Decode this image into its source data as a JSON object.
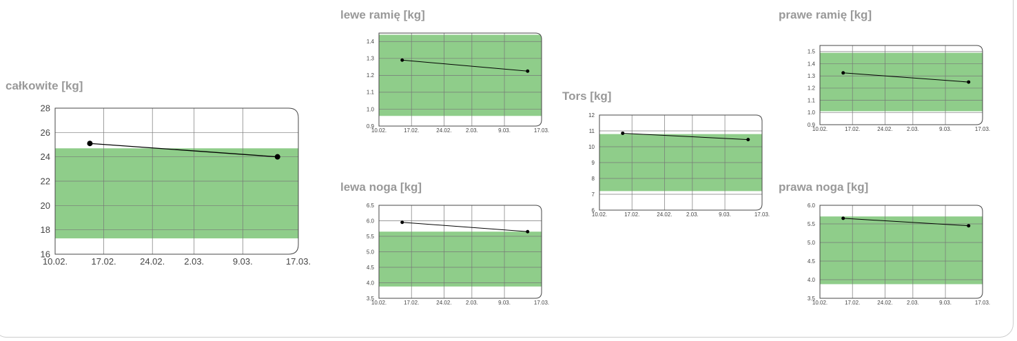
{
  "chart_data": [
    {
      "id": "calkowite",
      "type": "line",
      "title": "całkowite [kg]",
      "x_ticks": [
        "10.02.",
        "17.02.",
        "24.02.",
        "2.03.",
        "9.03.",
        "17.03."
      ],
      "y_ticks": [
        "16",
        "18",
        "20",
        "22",
        "24",
        "26",
        "28"
      ],
      "ylim": [
        16,
        28
      ],
      "normal_range": [
        17.3,
        24.7
      ],
      "normal_range_color": "#8fcd8a",
      "series": [
        {
          "x": [
            "15.02.",
            "14.03."
          ],
          "values": [
            25.1,
            24.0
          ]
        }
      ]
    },
    {
      "id": "lewe-ramie",
      "type": "line",
      "title": "lewe ramię [kg]",
      "x_ticks": [
        "10.02.",
        "17.02.",
        "24.02.",
        "2.03.",
        "9.03.",
        "17.03."
      ],
      "y_ticks": [
        "0.9",
        "1.0",
        "1.1",
        "1.2",
        "1.3",
        "1.4"
      ],
      "ylim": [
        0.9,
        1.45
      ],
      "normal_range": [
        0.96,
        1.44
      ],
      "normal_range_color": "#8fcd8a",
      "series": [
        {
          "x": [
            "15.02.",
            "14.03."
          ],
          "values": [
            1.29,
            1.225
          ]
        }
      ]
    },
    {
      "id": "lewa-noga",
      "type": "line",
      "title": "lewa noga [kg]",
      "x_ticks": [
        "10.02.",
        "17.02.",
        "24.02.",
        "2.03.",
        "9.03.",
        "17.03."
      ],
      "y_ticks": [
        "3.5",
        "4.0",
        "4.5",
        "5.0",
        "5.5",
        "6.0",
        "6.5"
      ],
      "ylim": [
        3.5,
        6.5
      ],
      "normal_range": [
        3.88,
        5.65
      ],
      "normal_range_color": "#8fcd8a",
      "series": [
        {
          "x": [
            "15.02.",
            "14.03."
          ],
          "values": [
            5.95,
            5.65
          ]
        }
      ]
    },
    {
      "id": "tors",
      "type": "line",
      "title": "Tors [kg]",
      "x_ticks": [
        "10.02.",
        "17.02.",
        "24.02.",
        "2.03.",
        "9.03.",
        "17.03."
      ],
      "y_ticks": [
        "6",
        "7",
        "8",
        "9",
        "10",
        "11",
        "12"
      ],
      "ylim": [
        6,
        12
      ],
      "normal_range": [
        7.2,
        10.8
      ],
      "normal_range_color": "#8fcd8a",
      "series": [
        {
          "x": [
            "15.02.",
            "14.03."
          ],
          "values": [
            10.85,
            10.45
          ]
        }
      ]
    },
    {
      "id": "prawe-ramie",
      "type": "line",
      "title": "prawe ramię [kg]",
      "x_ticks": [
        "10.02.",
        "17.02.",
        "24.02.",
        "2.03.",
        "9.03.",
        "17.03."
      ],
      "y_ticks": [
        "0.9",
        "1.0",
        "1.1",
        "1.2",
        "1.3",
        "1.4",
        "1.5"
      ],
      "ylim": [
        0.9,
        1.55
      ],
      "normal_range": [
        1.01,
        1.49
      ],
      "normal_range_color": "#8fcd8a",
      "series": [
        {
          "x": [
            "15.02.",
            "14.03."
          ],
          "values": [
            1.325,
            1.25
          ]
        }
      ]
    },
    {
      "id": "prawa-noga",
      "type": "line",
      "title": "prawa noga [kg]",
      "x_ticks": [
        "10.02.",
        "17.02.",
        "24.02.",
        "2.03.",
        "9.03.",
        "17.03."
      ],
      "y_ticks": [
        "3.5",
        "4.0",
        "4.5",
        "5.0",
        "5.5",
        "6.0"
      ],
      "ylim": [
        3.5,
        6.0
      ],
      "normal_range": [
        3.88,
        5.7
      ],
      "normal_range_color": "#8fcd8a",
      "series": [
        {
          "x": [
            "15.02.",
            "14.03."
          ],
          "values": [
            5.65,
            5.45
          ]
        }
      ]
    }
  ]
}
